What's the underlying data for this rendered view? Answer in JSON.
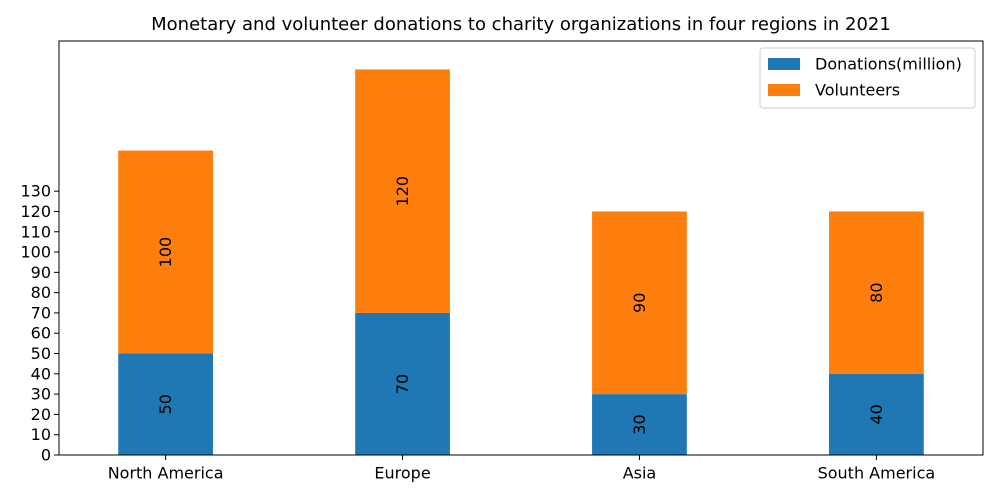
{
  "chart_data": {
    "type": "bar",
    "stacked": true,
    "title": "Monetary and volunteer donations to charity organizations in four regions in 2021",
    "xlabel": "",
    "ylabel": "",
    "categories": [
      "North America",
      "Europe",
      "Asia",
      "South America"
    ],
    "series": [
      {
        "name": "Donations(million)",
        "values": [
          50,
          70,
          30,
          40
        ],
        "color": "#1f77b4"
      },
      {
        "name": "Volunteers",
        "values": [
          100,
          120,
          90,
          80
        ],
        "color": "#ff7f0e"
      }
    ],
    "yticks": [
      0,
      10,
      20,
      30,
      40,
      50,
      60,
      70,
      80,
      90,
      100,
      110,
      120,
      130
    ],
    "ylim": [
      0,
      204
    ],
    "grid": false,
    "legend_position": "top-right",
    "data_labels": "rotated, centered in each segment"
  }
}
